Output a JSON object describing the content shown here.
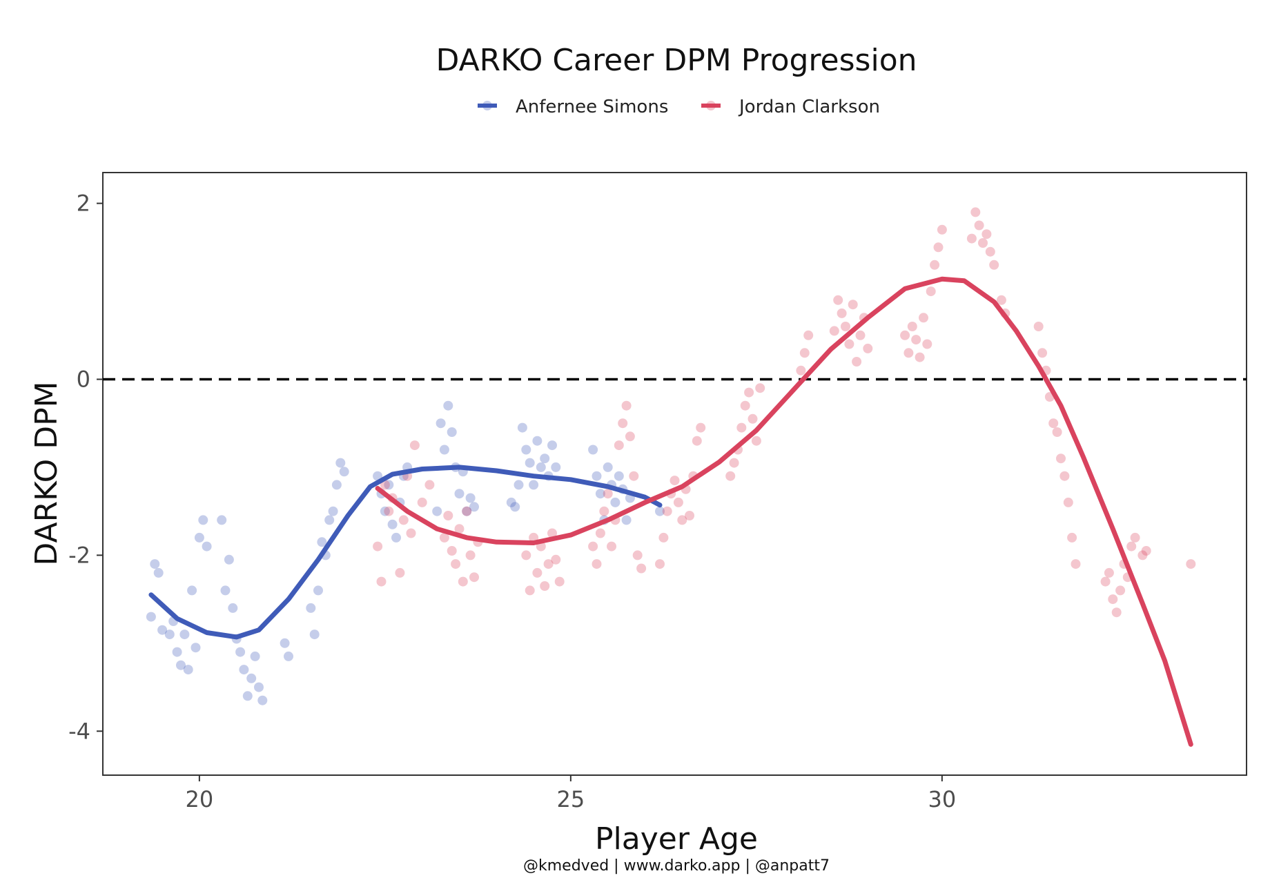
{
  "chart_data": {
    "type": "scatter",
    "title": "DARKO Career DPM Progression",
    "xlabel": "Player Age",
    "ylabel": "DARKO DPM",
    "caption": "@kmedved | www.darko.app | @anpatt7",
    "xlim": [
      18.7,
      34.1
    ],
    "ylim": [
      -4.5,
      2.35
    ],
    "x_ticks": [
      20,
      25,
      30
    ],
    "y_ticks": [
      2,
      0,
      -2,
      -4
    ],
    "reference_line": {
      "y": 0,
      "style": "dashed",
      "color": "#000000"
    },
    "grid": false,
    "legend_position": "top",
    "series": [
      {
        "name": "Anfernee Simons",
        "color": "#3f5bb8",
        "points": [
          [
            19.35,
            -2.7
          ],
          [
            19.4,
            -2.1
          ],
          [
            19.45,
            -2.2
          ],
          [
            19.5,
            -2.85
          ],
          [
            19.6,
            -2.9
          ],
          [
            19.65,
            -2.75
          ],
          [
            19.7,
            -3.1
          ],
          [
            19.75,
            -3.25
          ],
          [
            19.8,
            -2.9
          ],
          [
            19.85,
            -3.3
          ],
          [
            19.9,
            -2.4
          ],
          [
            19.95,
            -3.05
          ],
          [
            20.0,
            -1.8
          ],
          [
            20.05,
            -1.6
          ],
          [
            20.1,
            -1.9
          ],
          [
            20.3,
            -1.6
          ],
          [
            20.35,
            -2.4
          ],
          [
            20.4,
            -2.05
          ],
          [
            20.45,
            -2.6
          ],
          [
            20.5,
            -2.95
          ],
          [
            20.55,
            -3.1
          ],
          [
            20.6,
            -3.3
          ],
          [
            20.65,
            -3.6
          ],
          [
            20.7,
            -3.4
          ],
          [
            20.75,
            -3.15
          ],
          [
            20.8,
            -3.5
          ],
          [
            20.85,
            -3.65
          ],
          [
            21.15,
            -3.0
          ],
          [
            21.2,
            -3.15
          ],
          [
            21.5,
            -2.6
          ],
          [
            21.55,
            -2.9
          ],
          [
            21.6,
            -2.4
          ],
          [
            21.65,
            -1.85
          ],
          [
            21.7,
            -2.0
          ],
          [
            21.75,
            -1.6
          ],
          [
            21.8,
            -1.5
          ],
          [
            21.85,
            -1.2
          ],
          [
            21.9,
            -0.95
          ],
          [
            21.95,
            -1.05
          ],
          [
            22.4,
            -1.1
          ],
          [
            22.45,
            -1.3
          ],
          [
            22.5,
            -1.5
          ],
          [
            22.55,
            -1.2
          ],
          [
            22.6,
            -1.65
          ],
          [
            22.65,
            -1.8
          ],
          [
            22.7,
            -1.4
          ],
          [
            22.75,
            -1.1
          ],
          [
            22.8,
            -1.0
          ],
          [
            23.2,
            -1.5
          ],
          [
            23.25,
            -0.5
          ],
          [
            23.3,
            -0.8
          ],
          [
            23.35,
            -0.3
          ],
          [
            23.4,
            -0.6
          ],
          [
            23.45,
            -1.0
          ],
          [
            23.5,
            -1.3
          ],
          [
            23.55,
            -1.05
          ],
          [
            23.6,
            -1.5
          ],
          [
            23.65,
            -1.35
          ],
          [
            23.7,
            -1.45
          ],
          [
            24.2,
            -1.4
          ],
          [
            24.25,
            -1.45
          ],
          [
            24.3,
            -1.2
          ],
          [
            24.35,
            -0.55
          ],
          [
            24.4,
            -0.8
          ],
          [
            24.45,
            -0.95
          ],
          [
            24.5,
            -1.2
          ],
          [
            24.55,
            -0.7
          ],
          [
            24.6,
            -1.0
          ],
          [
            24.65,
            -0.9
          ],
          [
            24.7,
            -1.1
          ],
          [
            24.75,
            -0.75
          ],
          [
            24.8,
            -1.0
          ],
          [
            25.3,
            -0.8
          ],
          [
            25.35,
            -1.1
          ],
          [
            25.4,
            -1.3
          ],
          [
            25.45,
            -1.6
          ],
          [
            25.5,
            -1.0
          ],
          [
            25.55,
            -1.2
          ],
          [
            25.6,
            -1.4
          ],
          [
            25.65,
            -1.1
          ],
          [
            25.7,
            -1.25
          ],
          [
            25.75,
            -1.6
          ],
          [
            25.8,
            -1.35
          ],
          [
            26.2,
            -1.5
          ]
        ]
      },
      {
        "name": "Jordan Clarkson",
        "color": "#d9435e",
        "points": [
          [
            22.4,
            -1.9
          ],
          [
            22.45,
            -2.3
          ],
          [
            22.5,
            -1.2
          ],
          [
            22.55,
            -1.5
          ],
          [
            22.6,
            -1.35
          ],
          [
            22.7,
            -2.2
          ],
          [
            22.75,
            -1.6
          ],
          [
            22.8,
            -1.1
          ],
          [
            22.85,
            -1.75
          ],
          [
            22.9,
            -0.75
          ],
          [
            23.0,
            -1.4
          ],
          [
            23.1,
            -1.2
          ],
          [
            23.3,
            -1.8
          ],
          [
            23.35,
            -1.55
          ],
          [
            23.4,
            -1.95
          ],
          [
            23.45,
            -2.1
          ],
          [
            23.5,
            -1.7
          ],
          [
            23.55,
            -2.3
          ],
          [
            23.6,
            -1.5
          ],
          [
            23.65,
            -2.0
          ],
          [
            23.7,
            -2.25
          ],
          [
            23.75,
            -1.85
          ],
          [
            24.4,
            -2.0
          ],
          [
            24.45,
            -2.4
          ],
          [
            24.5,
            -1.8
          ],
          [
            24.55,
            -2.2
          ],
          [
            24.6,
            -1.9
          ],
          [
            24.65,
            -2.35
          ],
          [
            24.7,
            -2.1
          ],
          [
            24.75,
            -1.75
          ],
          [
            24.8,
            -2.05
          ],
          [
            24.85,
            -2.3
          ],
          [
            25.3,
            -1.9
          ],
          [
            25.35,
            -2.1
          ],
          [
            25.4,
            -1.75
          ],
          [
            25.45,
            -1.5
          ],
          [
            25.5,
            -1.3
          ],
          [
            25.55,
            -1.9
          ],
          [
            25.6,
            -1.6
          ],
          [
            25.65,
            -0.75
          ],
          [
            25.7,
            -0.5
          ],
          [
            25.75,
            -0.3
          ],
          [
            25.8,
            -0.65
          ],
          [
            25.85,
            -1.1
          ],
          [
            25.9,
            -2.0
          ],
          [
            25.95,
            -2.15
          ],
          [
            26.2,
            -2.1
          ],
          [
            26.25,
            -1.8
          ],
          [
            26.3,
            -1.5
          ],
          [
            26.35,
            -1.3
          ],
          [
            26.4,
            -1.15
          ],
          [
            26.45,
            -1.4
          ],
          [
            26.5,
            -1.6
          ],
          [
            26.55,
            -1.25
          ],
          [
            26.6,
            -1.55
          ],
          [
            26.65,
            -1.1
          ],
          [
            26.7,
            -0.7
          ],
          [
            26.75,
            -0.55
          ],
          [
            27.15,
            -1.1
          ],
          [
            27.2,
            -0.95
          ],
          [
            27.25,
            -0.8
          ],
          [
            27.3,
            -0.55
          ],
          [
            27.35,
            -0.3
          ],
          [
            27.4,
            -0.15
          ],
          [
            27.45,
            -0.45
          ],
          [
            27.5,
            -0.7
          ],
          [
            27.55,
            -0.1
          ],
          [
            28.1,
            0.1
          ],
          [
            28.15,
            0.3
          ],
          [
            28.2,
            0.5
          ],
          [
            28.55,
            0.55
          ],
          [
            28.6,
            0.9
          ],
          [
            28.65,
            0.75
          ],
          [
            28.7,
            0.6
          ],
          [
            28.75,
            0.4
          ],
          [
            28.8,
            0.85
          ],
          [
            28.85,
            0.2
          ],
          [
            28.9,
            0.5
          ],
          [
            28.95,
            0.7
          ],
          [
            29.0,
            0.35
          ],
          [
            29.5,
            0.5
          ],
          [
            29.55,
            0.3
          ],
          [
            29.6,
            0.6
          ],
          [
            29.65,
            0.45
          ],
          [
            29.7,
            0.25
          ],
          [
            29.75,
            0.7
          ],
          [
            29.8,
            0.4
          ],
          [
            29.85,
            1.0
          ],
          [
            29.9,
            1.3
          ],
          [
            29.95,
            1.5
          ],
          [
            30.0,
            1.7
          ],
          [
            30.4,
            1.6
          ],
          [
            30.45,
            1.9
          ],
          [
            30.5,
            1.75
          ],
          [
            30.55,
            1.55
          ],
          [
            30.6,
            1.65
          ],
          [
            30.65,
            1.45
          ],
          [
            30.7,
            1.3
          ],
          [
            30.8,
            0.9
          ],
          [
            30.85,
            0.75
          ],
          [
            31.3,
            0.6
          ],
          [
            31.35,
            0.3
          ],
          [
            31.4,
            0.1
          ],
          [
            31.45,
            -0.2
          ],
          [
            31.5,
            -0.5
          ],
          [
            31.55,
            -0.6
          ],
          [
            31.6,
            -0.9
          ],
          [
            31.65,
            -1.1
          ],
          [
            31.7,
            -1.4
          ],
          [
            31.75,
            -1.8
          ],
          [
            31.8,
            -2.1
          ],
          [
            32.2,
            -2.3
          ],
          [
            32.25,
            -2.2
          ],
          [
            32.3,
            -2.5
          ],
          [
            32.35,
            -2.65
          ],
          [
            32.4,
            -2.4
          ],
          [
            32.45,
            -2.1
          ],
          [
            32.5,
            -2.25
          ],
          [
            32.55,
            -1.9
          ],
          [
            32.6,
            -1.8
          ],
          [
            32.7,
            -2.0
          ],
          [
            32.75,
            -1.95
          ],
          [
            33.35,
            -2.1
          ]
        ]
      }
    ],
    "trend_lines": [
      {
        "name": "Anfernee Simons",
        "color": "#3f5bb8",
        "points": [
          [
            19.35,
            -2.45
          ],
          [
            19.7,
            -2.72
          ],
          [
            20.1,
            -2.88
          ],
          [
            20.5,
            -2.93
          ],
          [
            20.8,
            -2.85
          ],
          [
            21.2,
            -2.5
          ],
          [
            21.6,
            -2.05
          ],
          [
            22.0,
            -1.55
          ],
          [
            22.3,
            -1.22
          ],
          [
            22.6,
            -1.08
          ],
          [
            23.0,
            -1.02
          ],
          [
            23.5,
            -1.0
          ],
          [
            24.0,
            -1.04
          ],
          [
            24.5,
            -1.1
          ],
          [
            25.0,
            -1.14
          ],
          [
            25.5,
            -1.22
          ],
          [
            26.0,
            -1.34
          ],
          [
            26.2,
            -1.43
          ]
        ]
      },
      {
        "name": "Jordan Clarkson",
        "color": "#d9435e",
        "points": [
          [
            22.4,
            -1.24
          ],
          [
            22.8,
            -1.5
          ],
          [
            23.2,
            -1.7
          ],
          [
            23.6,
            -1.8
          ],
          [
            24.0,
            -1.85
          ],
          [
            24.5,
            -1.86
          ],
          [
            25.0,
            -1.77
          ],
          [
            25.5,
            -1.6
          ],
          [
            26.0,
            -1.4
          ],
          [
            26.5,
            -1.22
          ],
          [
            27.0,
            -0.94
          ],
          [
            27.5,
            -0.58
          ],
          [
            28.0,
            -0.12
          ],
          [
            28.5,
            0.34
          ],
          [
            29.0,
            0.7
          ],
          [
            29.5,
            1.03
          ],
          [
            30.0,
            1.14
          ],
          [
            30.3,
            1.12
          ],
          [
            30.7,
            0.88
          ],
          [
            31.0,
            0.55
          ],
          [
            31.3,
            0.15
          ],
          [
            31.6,
            -0.3
          ],
          [
            31.9,
            -0.88
          ],
          [
            32.3,
            -1.7
          ],
          [
            32.7,
            -2.55
          ],
          [
            33.0,
            -3.2
          ],
          [
            33.35,
            -4.15
          ]
        ]
      }
    ]
  }
}
